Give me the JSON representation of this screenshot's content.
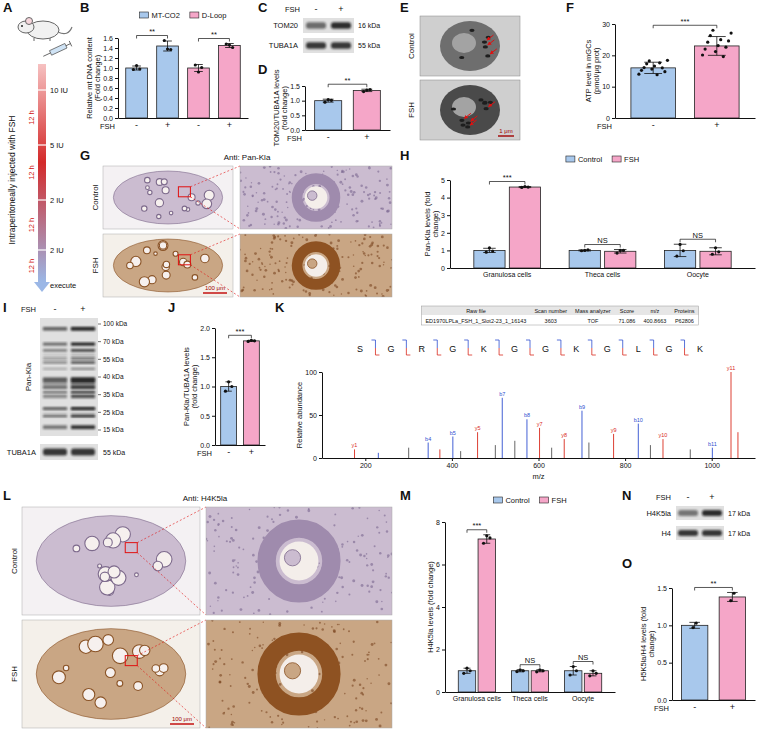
{
  "chart_data": [
    {
      "label": "B",
      "type": "bar",
      "ylabel": "Relative mt DNA content (Fold change)",
      "xlabel": "FSH",
      "categories": [
        "-",
        "+",
        "-",
        "+"
      ],
      "series": [
        {
          "name": "MT-CO2",
          "color": "#a8c8ec",
          "values": [
            1.0,
            1.44,
            null,
            null
          ],
          "errors": [
            0.04,
            0.1,
            null,
            null
          ],
          "points": [
            [
              0.97,
              1.05,
              0.98
            ],
            [
              1.55,
              1.38,
              1.37
            ],
            null,
            null
          ]
        },
        {
          "name": "D-Loop",
          "color": "#f5a6c8",
          "values": [
            null,
            null,
            1.0,
            1.45
          ],
          "errors": [
            null,
            null,
            0.07,
            0.04
          ],
          "points": [
            null,
            null,
            [
              1.06,
              0.92,
              1.01
            ],
            [
              1.48,
              1.46,
              1.41
            ]
          ]
        }
      ],
      "ylim": [
        0,
        1.6
      ],
      "yticks": [
        {
          "value": 0,
          "label": "0.0"
        },
        0.2,
        0.4,
        0.6,
        0.8,
        {
          "value": 1,
          "label": "1.0"
        },
        1.2,
        1.4,
        1.6
      ],
      "legend": "top",
      "annotations": [
        {
          "text": "**",
          "between": [
            0,
            1
          ]
        },
        {
          "text": "**",
          "between": [
            2,
            3
          ]
        }
      ]
    },
    {
      "label": "D",
      "type": "bar",
      "ylabel": "TOM20/TUBA1A levels (fold change)",
      "xlabel": "FSH",
      "categories": [
        "-",
        "+"
      ],
      "values": [
        1.0,
        1.35
      ],
      "errors": [
        0.05,
        0.04
      ],
      "points": [
        [
          0.95,
          1.04,
          1.01
        ],
        [
          1.31,
          1.36,
          1.38
        ]
      ],
      "colors": [
        "#a8c8ec",
        "#f5a6c8"
      ],
      "ylim": [
        0,
        1.5
      ],
      "yticks": [
        {
          "value": 0,
          "label": "0.0"
        },
        0.5,
        {
          "value": 1,
          "label": "1.0"
        },
        1.5
      ],
      "annotations": [
        {
          "text": "**",
          "between": [
            0,
            1
          ]
        }
      ]
    },
    {
      "label": "F",
      "type": "bar",
      "ylabel": "ATP level in mGCs (pmol/μg prot)",
      "xlabel": "FSH",
      "categories": [
        "-",
        "+"
      ],
      "values": [
        16.0,
        23.0
      ],
      "errors": [
        1.8,
        3.0
      ],
      "points": [
        [
          14.0,
          15.2,
          16.1,
          17.3,
          18.2,
          15.6,
          16.6,
          13.8,
          17.6,
          16.0,
          14.8,
          18.4
        ],
        [
          20.1,
          22.0,
          24.2,
          26.3,
          28.0,
          21.2,
          23.1,
          25.0,
          19.6,
          22.6,
          24.6,
          27.1
        ]
      ],
      "colors": [
        "#a8c8ec",
        "#f5a6c8"
      ],
      "ylim": [
        0,
        30
      ],
      "yticks": [
        0,
        10,
        20,
        30
      ],
      "annotations": [
        {
          "text": "***",
          "between": [
            0,
            1
          ]
        }
      ]
    },
    {
      "label": "H",
      "type": "bar",
      "ylabel": "Pan-Kla levels (fold change)",
      "categories": [
        "Granulosa cells",
        "Theca cells",
        "Oocyte"
      ],
      "series": [
        {
          "name": "Control",
          "color": "#a8c8ec",
          "values": [
            1.0,
            1.0,
            1.0
          ],
          "errors": [
            0.12,
            0.03,
            0.35
          ],
          "points": [
            [
              0.9,
              1.14,
              0.96
            ],
            [
              0.98,
              1.0,
              1.03
            ],
            [
              0.68,
              1.34,
              0.98
            ]
          ]
        },
        {
          "name": "FSH",
          "color": "#f5a6c8",
          "values": [
            4.6,
            0.95,
            0.95
          ],
          "errors": [
            0.03,
            0.1,
            0.2
          ],
          "points": [
            [
              4.58,
              4.63,
              4.6
            ],
            [
              0.85,
              1.0,
              1.0
            ],
            [
              0.78,
              1.15,
              0.92
            ]
          ]
        }
      ],
      "ylim": [
        0,
        5
      ],
      "yticks": [
        0,
        1,
        2,
        3,
        4,
        5
      ],
      "legend": "top",
      "annotations": [
        {
          "text": "***",
          "category": 0
        },
        {
          "text": "NS",
          "category": 1
        },
        {
          "text": "NS",
          "category": 2
        }
      ]
    },
    {
      "label": "J",
      "type": "bar",
      "ylabel": "Pan-Kla/TUBA1A levels (fold change)",
      "xlabel": "FSH",
      "categories": [
        "-",
        "+"
      ],
      "values": [
        1.0,
        1.78
      ],
      "errors": [
        0.08,
        0.01
      ],
      "points": [
        [
          0.92,
          1.08,
          1.0
        ],
        [
          1.77,
          1.79,
          1.78
        ]
      ],
      "colors": [
        "#a8c8ec",
        "#f5a6c8"
      ],
      "ylim": [
        0,
        2
      ],
      "yticks": [
        {
          "value": 0,
          "label": "0.0"
        },
        0.5,
        {
          "value": 1,
          "label": "1.0"
        },
        1.5,
        {
          "value": 2,
          "label": "2.0"
        }
      ],
      "annotations": [
        {
          "text": "***",
          "between": [
            0,
            1
          ]
        }
      ]
    },
    {
      "label": "K",
      "type": "stem",
      "table": {
        "columns": [
          "Raw file",
          "Scan number",
          "Mass analyzer",
          "Score",
          "m/z",
          "Proteins"
        ],
        "rows": [
          [
            "ED1970LPLa_FSH_1_Slot2-23_1_16143",
            "3603",
            "TOF",
            "71.086",
            "400.8663",
            "P62806"
          ]
        ]
      },
      "sequence": [
        "S",
        "G",
        "R",
        "G",
        "K",
        "G",
        "G",
        "K",
        "G",
        "L",
        "G",
        "K"
      ],
      "ylabel": "Relative abundance",
      "xlabel": "m/z",
      "x": [
        175.1,
        230.1,
        300.2,
        345.2,
        372.2,
        402.2,
        420.2,
        459.3,
        500.3,
        516.3,
        545.3,
        573.3,
        602.4,
        630.4,
        659.4,
        700.4,
        716.4,
        773.4,
        830.5,
        858.5,
        887.5,
        950.5,
        1001.5,
        1044.6,
        1060.6
      ],
      "values": [
        10,
        6,
        12,
        18,
        10,
        25,
        8,
        30,
        15,
        70,
        20,
        45,
        35,
        12,
        22,
        55,
        18,
        28,
        40,
        15,
        22,
        10,
        12,
        100,
        30
      ],
      "colors": [
        "#d92b1e",
        "#2f4fd0",
        "#555555",
        "#2f4fd0",
        "#d92b1e",
        "#2f4fd0",
        "#555555",
        "#d92b1e",
        "#555555",
        "#2f4fd0",
        "#555555",
        "#2f4fd0",
        "#d92b1e",
        "#555555",
        "#d92b1e",
        "#2f4fd0",
        "#555555",
        "#d92b1e",
        "#2f4fd0",
        "#555555",
        "#d92b1e",
        "#555555",
        "#2f4fd0",
        "#d92b1e",
        "#d92b1e"
      ],
      "ion_labels": [
        {
          "peak": 0,
          "text": "y1"
        },
        {
          "peak": 3,
          "text": "b4"
        },
        {
          "peak": 5,
          "text": "b5"
        },
        {
          "peak": 7,
          "text": "y5"
        },
        {
          "peak": 9,
          "text": "b7"
        },
        {
          "peak": 11,
          "text": "b8"
        },
        {
          "peak": 12,
          "text": "y7"
        },
        {
          "peak": 14,
          "text": "y8"
        },
        {
          "peak": 15,
          "text": "b9"
        },
        {
          "peak": 17,
          "text": "y9"
        },
        {
          "peak": 18,
          "text": "b10"
        },
        {
          "peak": 20,
          "text": "y10"
        },
        {
          "peak": 22,
          "text": "b11"
        },
        {
          "peak": 23,
          "text": "y11"
        }
      ],
      "xlim": [
        100,
        1100
      ],
      "xticks": [
        200,
        400,
        600,
        800,
        1000
      ],
      "ylim": [
        0,
        100
      ],
      "yticks": [
        0,
        50,
        100
      ]
    },
    {
      "label": "M",
      "type": "bar",
      "ylabel": "H4K5la levels (fold change)",
      "categories": [
        "Granulosa cells",
        "Theca cells",
        "Oocyte"
      ],
      "series": [
        {
          "name": "Control",
          "color": "#a8c8ec",
          "values": [
            1.0,
            1.0,
            1.0
          ],
          "errors": [
            0.12,
            0.05,
            0.2
          ],
          "points": [
            [
              0.88,
              1.12,
              1.0
            ],
            [
              0.96,
              1.04,
              1.0
            ],
            [
              0.8,
              1.2,
              1.0
            ]
          ]
        },
        {
          "name": "FSH",
          "color": "#f5a6c8",
          "values": [
            7.2,
            1.0,
            0.88
          ],
          "errors": [
            0.2,
            0.05,
            0.12
          ],
          "points": [
            [
              7.0,
              7.35,
              7.25
            ],
            [
              0.95,
              1.04,
              1.0
            ],
            [
              0.76,
              1.0,
              0.88
            ]
          ]
        }
      ],
      "ylim": [
        0,
        8
      ],
      "yticks": [
        0,
        2,
        4,
        6,
        8
      ],
      "legend": "top",
      "annotations": [
        {
          "text": "***",
          "category": 0
        },
        {
          "text": "NS",
          "category": 1
        },
        {
          "text": "NS",
          "category": 2
        }
      ]
    },
    {
      "label": "O",
      "type": "bar",
      "ylabel": "H5K5la/H4 levels (fold change)",
      "xlabel": "FSH",
      "categories": [
        "-",
        "+"
      ],
      "values": [
        1.0,
        1.38
      ],
      "errors": [
        0.04,
        0.06
      ],
      "points": [
        [
          0.97,
          1.03
        ],
        [
          1.33,
          1.43
        ]
      ],
      "colors": [
        "#a8c8ec",
        "#f5a6c8"
      ],
      "ylim": [
        0,
        1.5
      ],
      "yticks": [
        {
          "value": 0,
          "label": "0.0"
        },
        0.5,
        {
          "value": 1,
          "label": "1.0"
        },
        1.5
      ],
      "annotations": [
        {
          "text": "**",
          "between": [
            0,
            1
          ]
        }
      ]
    }
  ],
  "schematic": {
    "label": "A",
    "title": "Intraperitoneally injected with FSH",
    "doses": [
      "10 IU",
      "5 IU",
      "2 IU",
      "2 IU"
    ],
    "intervals": [
      "12 h",
      "12 h",
      "12 h",
      "12 h"
    ],
    "end": "execute"
  },
  "blots": [
    {
      "label": "C",
      "treatment": "FSH",
      "lanes": [
        "-",
        "+"
      ],
      "rows": [
        {
          "name": "TOM20",
          "size": "16 kDa"
        },
        {
          "name": "TUBA1A",
          "size": "55 kDa"
        }
      ]
    },
    {
      "label": "I",
      "treatment": "FSH",
      "lanes": [
        "-",
        "+"
      ],
      "rows": [
        {
          "name": "Pan-Kla",
          "markers": [
            "100 kDa",
            "70 kDa",
            "55 kDa",
            "40 kDa",
            "35 kDa",
            "25 kDa",
            "15 kDa"
          ]
        },
        {
          "name": "TUBA1A",
          "size": "55 kDa"
        }
      ]
    },
    {
      "label": "N",
      "treatment": "FSH",
      "lanes": [
        "-",
        "+"
      ],
      "rows": [
        {
          "name": "H4K5la",
          "size": "17 kDa"
        },
        {
          "name": "H4",
          "size": "17 kDa"
        }
      ]
    }
  ],
  "images": [
    {
      "label": "E",
      "rows": [
        "Control",
        "FSH"
      ],
      "scale_bar": "1 μm"
    },
    {
      "label": "G",
      "title": "Anti: Pan-Kla",
      "rows": [
        "Control",
        "FSH"
      ],
      "scale_bar": "100 μm"
    },
    {
      "label": "L",
      "title": "Anti: H4K5la",
      "rows": [
        "Control",
        "FSH"
      ],
      "scale_bar": "100 μm"
    }
  ]
}
